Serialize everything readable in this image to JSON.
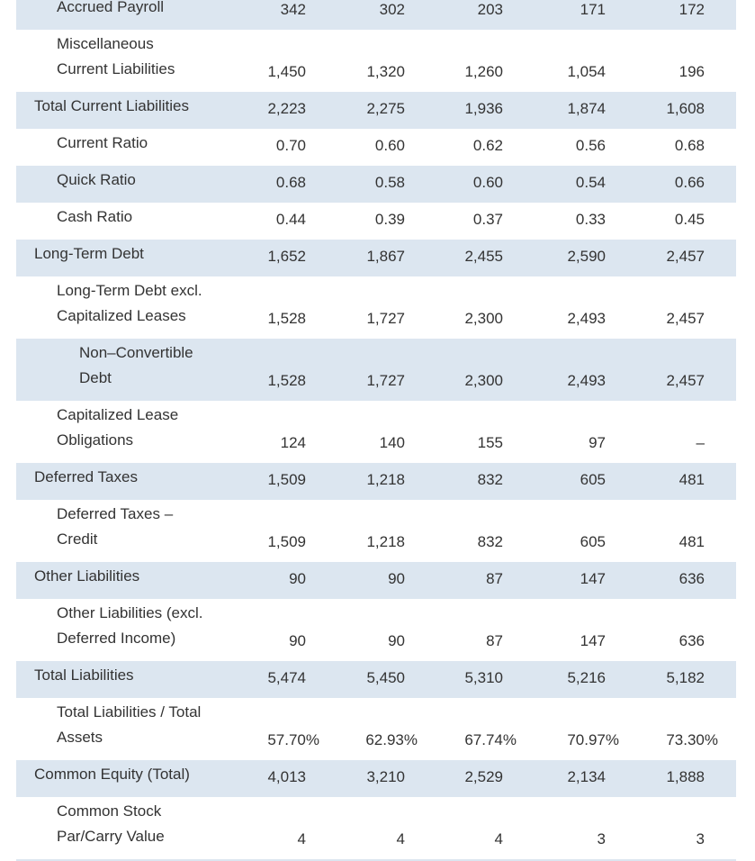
{
  "table": {
    "rows": [
      {
        "label": [
          "Accrued Payroll"
        ],
        "level": 1,
        "values": [
          "342",
          "302",
          "203",
          "171",
          "172"
        ]
      },
      {
        "label": [
          "Miscellaneous",
          "Current Liabilities"
        ],
        "level": 1,
        "values": [
          "1,450",
          "1,320",
          "1,260",
          "1,054",
          "196"
        ]
      },
      {
        "label": [
          "Total Current Liabilities"
        ],
        "level": 0,
        "values": [
          "2,223",
          "2,275",
          "1,936",
          "1,874",
          "1,608"
        ]
      },
      {
        "label": [
          "Current Ratio"
        ],
        "level": 1,
        "values": [
          "0.70",
          "0.60",
          "0.62",
          "0.56",
          "0.68"
        ]
      },
      {
        "label": [
          "Quick Ratio"
        ],
        "level": 1,
        "values": [
          "0.68",
          "0.58",
          "0.60",
          "0.54",
          "0.66"
        ]
      },
      {
        "label": [
          "Cash Ratio"
        ],
        "level": 1,
        "values": [
          "0.44",
          "0.39",
          "0.37",
          "0.33",
          "0.45"
        ]
      },
      {
        "label": [
          "Long-Term Debt"
        ],
        "level": 0,
        "values": [
          "1,652",
          "1,867",
          "2,455",
          "2,590",
          "2,457"
        ]
      },
      {
        "label": [
          "Long-Term Debt excl.",
          "Capitalized Leases"
        ],
        "level": 1,
        "values": [
          "1,528",
          "1,727",
          "2,300",
          "2,493",
          "2,457"
        ]
      },
      {
        "label": [
          "Non–Convertible",
          "Debt"
        ],
        "level": 2,
        "values": [
          "1,528",
          "1,727",
          "2,300",
          "2,493",
          "2,457"
        ]
      },
      {
        "label": [
          "Capitalized Lease",
          "Obligations"
        ],
        "level": 1,
        "values": [
          "124",
          "140",
          "155",
          "97",
          "–"
        ]
      },
      {
        "label": [
          "Deferred Taxes"
        ],
        "level": 0,
        "values": [
          "1,509",
          "1,218",
          "832",
          "605",
          "481"
        ]
      },
      {
        "label": [
          "Deferred Taxes –",
          "Credit"
        ],
        "level": 1,
        "values": [
          "1,509",
          "1,218",
          "832",
          "605",
          "481"
        ]
      },
      {
        "label": [
          "Other Liabilities"
        ],
        "level": 0,
        "values": [
          "90",
          "90",
          "87",
          "147",
          "636"
        ]
      },
      {
        "label": [
          "Other Liabilities (excl.",
          "Deferred Income)"
        ],
        "level": 1,
        "values": [
          "90",
          "90",
          "87",
          "147",
          "636"
        ]
      },
      {
        "label": [
          "Total Liabilities"
        ],
        "level": 0,
        "values": [
          "5,474",
          "5,450",
          "5,310",
          "5,216",
          "5,182"
        ]
      },
      {
        "label": [
          "Total Liabilities / Total",
          "Assets"
        ],
        "level": 1,
        "values": [
          "57.70%",
          "62.93%",
          "67.74%",
          "70.97%",
          "73.30%"
        ]
      },
      {
        "label": [
          "Common Equity (Total)"
        ],
        "level": 0,
        "values": [
          "4,013",
          "3,210",
          "2,529",
          "2,134",
          "1,888"
        ]
      },
      {
        "label": [
          "Common Stock",
          "Par/Carry Value"
        ],
        "level": 1,
        "values": [
          "4",
          "4",
          "4",
          "3",
          "3"
        ]
      }
    ]
  },
  "colors": {
    "shaded_row": "#dce6f0",
    "text": "#333333"
  }
}
